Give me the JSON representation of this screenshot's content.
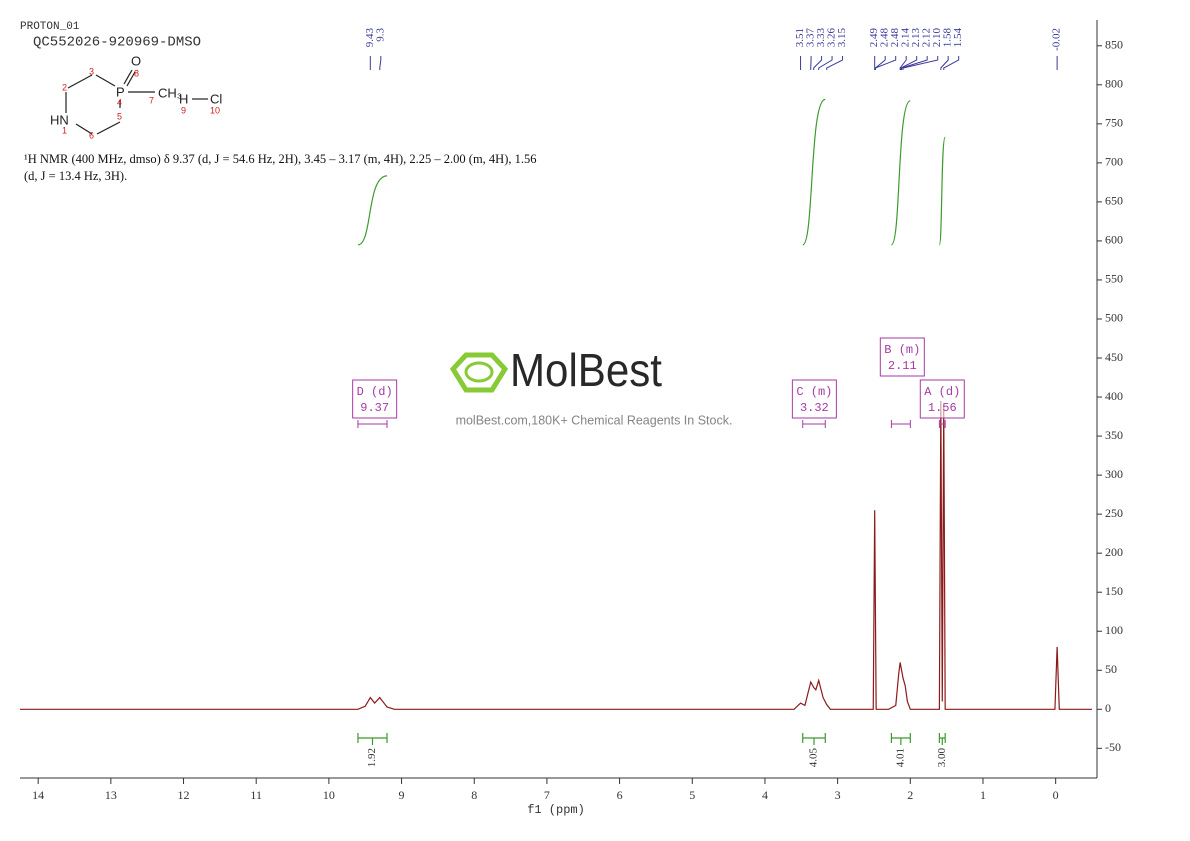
{
  "header": {
    "experiment": "PROTON_01",
    "sample": "QC552026-920969-DMSO"
  },
  "structure": {
    "atoms": [
      "O",
      "P",
      "CH₃",
      "HN",
      "H",
      "Cl"
    ],
    "numbers": [
      "1",
      "2",
      "3",
      "4",
      "5",
      "6",
      "7",
      "8",
      "9",
      "10"
    ]
  },
  "description": [
    "¹H NMR (400 MHz, dmso) δ 9.37 (d, J = 54.6 Hz, 2H), 3.45 – 3.17 (m, 4H), 2.25 – 2.00 (m, 4H), 1.56",
    "(d, J = 13.4 Hz, 3H)."
  ],
  "watermark": {
    "brand": "MolBest",
    "tagline": "molBest.com,180K+ Chemical Reagents In Stock."
  },
  "chart_data": {
    "type": "nmr",
    "x_label": "f1 (ppm)",
    "xlim": [
      14.25,
      -0.5
    ],
    "xticks": [
      14,
      13,
      12,
      11,
      10,
      9,
      8,
      7,
      6,
      5,
      4,
      3,
      2,
      1,
      0
    ],
    "ylim": [
      -88,
      883
    ],
    "yticks": [
      -50,
      0,
      50,
      100,
      150,
      200,
      250,
      300,
      350,
      400,
      450,
      500,
      550,
      600,
      650,
      700,
      750,
      800,
      850
    ],
    "spectrum_color": "#8b1a1a",
    "integral_color": "#3c9a2c",
    "peak_color": "#3a3a9a",
    "multiplet_color": "#a63aa6",
    "x": [
      14.25,
      9.6,
      9.5,
      9.43,
      9.37,
      9.3,
      9.2,
      9.1,
      3.6,
      3.51,
      3.45,
      3.37,
      3.33,
      3.3,
      3.26,
      3.2,
      3.15,
      3.1,
      2.51,
      2.49,
      2.47,
      2.3,
      2.2,
      2.16,
      2.14,
      2.13,
      2.12,
      2.1,
      2.07,
      2.04,
      2.0,
      1.6,
      1.58,
      1.56,
      1.54,
      1.52,
      0.01,
      -0.02,
      -0.05,
      -0.5
    ],
    "values": [
      0,
      0,
      4,
      15,
      8,
      15,
      3,
      0,
      0,
      8,
      5,
      35,
      28,
      25,
      37,
      15,
      6,
      0,
      0,
      255,
      0,
      0,
      5,
      45,
      60,
      55,
      50,
      40,
      30,
      10,
      0,
      0,
      395,
      10,
      390,
      0,
      0,
      80,
      0,
      0
    ],
    "peaks": [
      9.43,
      9.3,
      3.51,
      3.37,
      3.33,
      3.26,
      3.15,
      2.49,
      2.48,
      2.48,
      2.14,
      2.13,
      2.12,
      {
        "value": 2.1,
        "label": "2.10"
      },
      1.58,
      1.54,
      -0.02
    ],
    "integrals": [
      {
        "value": 1.92,
        "from": 9.6,
        "to": 9.2
      },
      {
        "value": 4.05,
        "from": 3.48,
        "to": 3.17
      },
      {
        "value": 4.01,
        "from": 2.26,
        "to": 2.0
      },
      {
        "value": {
          "value": 3,
          "label": "3.00"
        },
        "from": 1.6,
        "to": 1.52
      }
    ],
    "multiplets": [
      {
        "label": "D (d)",
        "value": 9.37,
        "from": 9.6,
        "to": 9.2
      },
      {
        "label": "C (m)",
        "value": 3.32,
        "from": 3.48,
        "to": 3.17
      },
      {
        "label": "B (m)",
        "value": 2.11,
        "from": 2.26,
        "to": 2.0
      },
      {
        "label": "A (d)",
        "value": 1.56,
        "from": 1.6,
        "to": 1.52
      }
    ]
  }
}
